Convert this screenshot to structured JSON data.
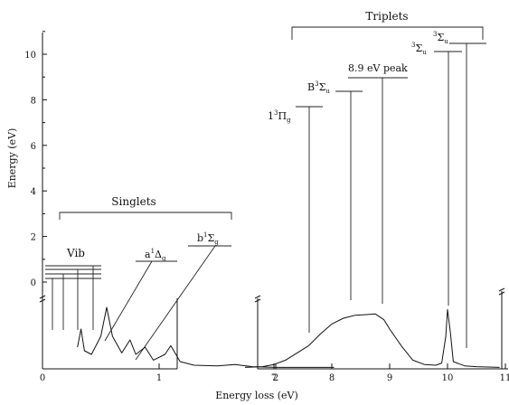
{
  "chart_data": {
    "type": "line",
    "title": "",
    "xlabel": "Energy loss (eV)",
    "ylabel": "Energy (eV)",
    "x_ticks_left": [
      "0",
      "1",
      "2"
    ],
    "x_ticks_right": [
      "7",
      "8",
      "9",
      "10",
      "11"
    ],
    "xlim_left": [
      0,
      2.5
    ],
    "xlim_right": [
      6.3,
      11
    ],
    "y_ticks": [
      "0",
      "2",
      "4",
      "6",
      "8",
      "10"
    ],
    "ylim": [
      -0.3,
      11
    ],
    "grid": false,
    "annotations": {
      "singlets": "Singlets",
      "triplets": "Triplets",
      "vib": "Vib",
      "a1Dg": {
        "main": "a",
        "sup": "1",
        "greek": "Δ",
        "sub": "g"
      },
      "b1Sg": {
        "main": "b",
        "sup": "1",
        "greek": "Σ",
        "sub": "g"
      },
      "t13Pg": {
        "main": "1",
        "sup": "3",
        "greek": "Π",
        "sub": "g"
      },
      "B3Su": {
        "main": "B",
        "sup": "3",
        "greek": "Σ",
        "sub": "u"
      },
      "peak89": "8.9 eV peak",
      "s3Su_a": {
        "main": "",
        "sup": "3",
        "greek": "Σ",
        "sub": "u"
      },
      "s3Su_b": {
        "main": "",
        "sup": "3",
        "greek": "Σ",
        "sub": "u"
      }
    },
    "level_lines": [
      {
        "label": "Vib",
        "energy": 0.8
      },
      {
        "label": "a¹Δg",
        "energy": 1.0,
        "x": 1.1
      },
      {
        "label": "b¹Σg",
        "energy": 1.65,
        "x": 1.65
      },
      {
        "label": "1³Πg",
        "energy": 7.7,
        "x": 7.6
      },
      {
        "label": "B³Σu",
        "energy": 8.4,
        "x": 8.3
      },
      {
        "label": "8.9 eV peak",
        "energy": 9.0,
        "x": 8.9
      },
      {
        "label": "³Σu",
        "energy": 10.0,
        "x": 10.0
      },
      {
        "label": "³Σu",
        "energy": 10.4,
        "x": 10.35
      }
    ],
    "series": [
      {
        "points_left": [
          [
            0.3,
            0.3
          ],
          [
            0.33,
            0.55
          ],
          [
            0.36,
            0.25
          ],
          [
            0.42,
            0.2
          ],
          [
            0.5,
            0.45
          ],
          [
            0.55,
            0.85
          ],
          [
            0.6,
            0.45
          ],
          [
            0.68,
            0.22
          ],
          [
            0.75,
            0.4
          ],
          [
            0.8,
            0.2
          ],
          [
            0.88,
            0.3
          ],
          [
            0.95,
            0.12
          ],
          [
            1.05,
            0.2
          ],
          [
            1.1,
            0.32
          ],
          [
            1.18,
            0.1
          ],
          [
            1.3,
            0.05
          ],
          [
            1.5,
            0.04
          ],
          [
            1.65,
            0.06
          ],
          [
            1.8,
            0.03
          ],
          [
            2.0,
            0.02
          ],
          [
            2.5,
            0.02
          ]
        ],
        "points_right": [
          [
            6.5,
            0.02
          ],
          [
            6.8,
            0.03
          ],
          [
            7.0,
            0.06
          ],
          [
            7.2,
            0.12
          ],
          [
            7.4,
            0.22
          ],
          [
            7.6,
            0.32
          ],
          [
            7.8,
            0.48
          ],
          [
            8.0,
            0.62
          ],
          [
            8.2,
            0.7
          ],
          [
            8.4,
            0.74
          ],
          [
            8.6,
            0.75
          ],
          [
            8.75,
            0.76
          ],
          [
            8.9,
            0.68
          ],
          [
            9.0,
            0.55
          ],
          [
            9.2,
            0.32
          ],
          [
            9.4,
            0.12
          ],
          [
            9.6,
            0.06
          ],
          [
            9.8,
            0.05
          ],
          [
            9.9,
            0.08
          ],
          [
            9.97,
            0.45
          ],
          [
            10.0,
            0.82
          ],
          [
            10.05,
            0.5
          ],
          [
            10.1,
            0.1
          ],
          [
            10.3,
            0.04
          ],
          [
            10.5,
            0.03
          ],
          [
            10.9,
            0.02
          ]
        ]
      }
    ]
  }
}
